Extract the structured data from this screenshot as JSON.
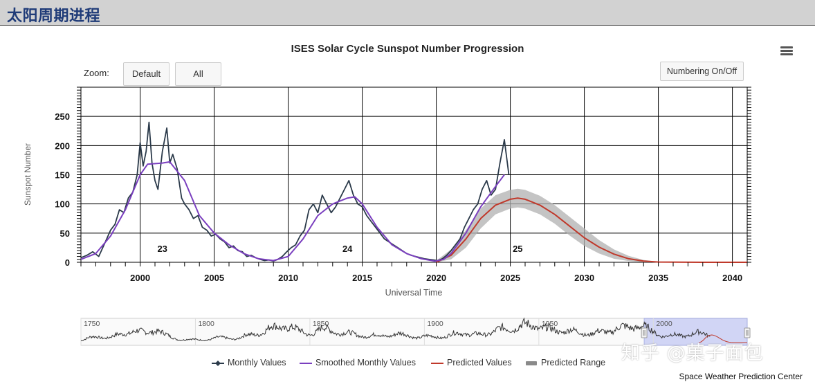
{
  "header": {
    "title": "太阳周期进程"
  },
  "chart_data": {
    "type": "line",
    "title": "ISES Solar Cycle Sunspot Number Progression",
    "xlabel": "Universal Time",
    "ylabel": "Sunspot Number",
    "xlim": [
      1996,
      2041
    ],
    "ylim": [
      0,
      300
    ],
    "x_ticks": [
      2000,
      2005,
      2010,
      2015,
      2020,
      2025,
      2030,
      2035,
      2040
    ],
    "y_ticks": [
      0,
      50,
      100,
      150,
      200,
      250
    ],
    "cycle_labels": [
      {
        "label": "23",
        "x": 2001.5
      },
      {
        "label": "24",
        "x": 2014.0
      },
      {
        "label": "25",
        "x": 2025.5
      }
    ],
    "series": [
      {
        "name": "Monthly Values",
        "color": "#2b3a4a",
        "x": [
          1996.0,
          1996.4,
          1996.8,
          1997.2,
          1997.6,
          1998.0,
          1998.3,
          1998.6,
          1998.9,
          1999.2,
          1999.5,
          1999.8,
          2000.0,
          2000.2,
          2000.4,
          2000.6,
          2000.8,
          2001.0,
          2001.2,
          2001.5,
          2001.8,
          2002.0,
          2002.2,
          2002.5,
          2002.8,
          2003.0,
          2003.3,
          2003.6,
          2003.9,
          2004.2,
          2004.5,
          2004.8,
          2005.1,
          2005.4,
          2005.7,
          2006.0,
          2006.3,
          2006.6,
          2006.9,
          2007.2,
          2007.5,
          2007.8,
          2008.1,
          2008.4,
          2008.7,
          2009.0,
          2009.3,
          2009.6,
          2009.9,
          2010.2,
          2010.5,
          2010.8,
          2011.1,
          2011.4,
          2011.7,
          2012.0,
          2012.3,
          2012.6,
          2012.9,
          2013.2,
          2013.5,
          2013.8,
          2014.1,
          2014.4,
          2014.7,
          2015.0,
          2015.3,
          2015.6,
          2015.9,
          2016.2,
          2016.5,
          2016.8,
          2017.1,
          2017.4,
          2017.7,
          2018.0,
          2018.3,
          2018.6,
          2018.9,
          2019.2,
          2019.5,
          2019.8,
          2020.1,
          2020.4,
          2020.7,
          2021.0,
          2021.3,
          2021.6,
          2021.9,
          2022.2,
          2022.5,
          2022.8,
          2023.1,
          2023.4,
          2023.7,
          2024.0,
          2024.3,
          2024.6,
          2024.9
        ],
        "y": [
          8,
          12,
          18,
          10,
          32,
          55,
          65,
          90,
          85,
          110,
          120,
          150,
          205,
          165,
          190,
          240,
          170,
          140,
          125,
          190,
          230,
          170,
          185,
          160,
          110,
          100,
          90,
          75,
          80,
          60,
          55,
          45,
          48,
          40,
          35,
          25,
          28,
          20,
          18,
          10,
          12,
          8,
          5,
          3,
          4,
          2,
          5,
          10,
          18,
          25,
          30,
          45,
          55,
          90,
          100,
          85,
          115,
          100,
          85,
          95,
          110,
          125,
          140,
          115,
          100,
          95,
          80,
          70,
          60,
          50,
          40,
          35,
          30,
          25,
          20,
          15,
          12,
          10,
          8,
          6,
          5,
          4,
          3,
          6,
          12,
          20,
          30,
          40,
          60,
          75,
          90,
          100,
          125,
          140,
          115,
          125,
          170,
          210,
          150
        ]
      },
      {
        "name": "Smoothed Monthly Values",
        "color": "#7a3fbf",
        "x": [
          1996.0,
          1997.0,
          1998.0,
          1999.0,
          2000.0,
          2000.5,
          2001.5,
          2002.0,
          2003.0,
          2004.0,
          2005.0,
          2006.0,
          2007.0,
          2008.0,
          2009.0,
          2010.0,
          2011.0,
          2012.0,
          2013.0,
          2014.0,
          2014.5,
          2015.0,
          2016.0,
          2017.0,
          2018.0,
          2019.0,
          2019.9,
          2020.5,
          2021.0,
          2022.0,
          2023.0,
          2024.0,
          2024.6
        ],
        "y": [
          5,
          15,
          45,
          90,
          150,
          168,
          170,
          172,
          140,
          80,
          50,
          30,
          15,
          6,
          3,
          10,
          40,
          80,
          100,
          110,
          112,
          100,
          60,
          30,
          15,
          6,
          2,
          5,
          15,
          50,
          95,
          130,
          150
        ]
      },
      {
        "name": "Predicted Values",
        "color": "#c0392b",
        "x": [
          2020.0,
          2021.0,
          2022.0,
          2023.0,
          2024.0,
          2025.0,
          2025.5,
          2026.0,
          2027.0,
          2028.0,
          2029.0,
          2030.0,
          2031.0,
          2032.0,
          2033.0,
          2034.0,
          2035.0,
          2036.0,
          2038.0,
          2041.0
        ],
        "y": [
          0,
          12,
          40,
          75,
          98,
          108,
          110,
          108,
          98,
          82,
          62,
          42,
          26,
          14,
          6,
          2,
          0.5,
          0.2,
          0,
          0
        ]
      },
      {
        "name": "Predicted Range",
        "color": "#b0b0b0",
        "x": [
          2020.0,
          2021.0,
          2022.0,
          2023.0,
          2024.0,
          2025.0,
          2025.5,
          2026.0,
          2027.0,
          2028.0,
          2029.0,
          2030.0,
          2031.0,
          2032.0,
          2033.0,
          2034.0,
          2035.0,
          2036.0,
          2038.0,
          2041.0
        ],
        "low": [
          0,
          5,
          25,
          58,
          82,
          92,
          94,
          92,
          82,
          66,
          46,
          28,
          15,
          6,
          2,
          0,
          0,
          0,
          0,
          0
        ],
        "high": [
          3,
          22,
          55,
          92,
          115,
          124,
          126,
          124,
          114,
          98,
          78,
          58,
          38,
          22,
          11,
          4,
          1,
          0.5,
          0,
          0
        ]
      }
    ],
    "navigator": {
      "x_labels": [
        1750,
        1800,
        1850,
        1900,
        1950,
        2000
      ],
      "range": [
        1750,
        2041
      ],
      "selected": [
        1996,
        2041
      ],
      "cycles": [
        [
          1755.2,
          86
        ],
        [
          1766.5,
          116
        ],
        [
          1775.5,
          158
        ],
        [
          1784.7,
          141
        ],
        [
          1798.3,
          50
        ],
        [
          1810.6,
          81
        ],
        [
          1823.3,
          119
        ],
        [
          1833.9,
          236
        ],
        [
          1843.5,
          198
        ],
        [
          1856.0,
          219
        ],
        [
          1867.2,
          140
        ],
        [
          1878.9,
          113
        ],
        [
          1889.6,
          130
        ],
        [
          1901.7,
          99
        ],
        [
          1913.6,
          140
        ],
        [
          1923.6,
          119
        ],
        [
          1933.8,
          211
        ],
        [
          1944.2,
          270
        ],
        [
          1954.3,
          201
        ],
        [
          1964.9,
          175
        ],
        [
          1976.5,
          165
        ],
        [
          1986.8,
          232
        ],
        [
          1996.4,
          216
        ],
        [
          2008.9,
          116
        ],
        [
          2019.9,
          150
        ]
      ]
    },
    "legend": [
      "Monthly Values",
      "Smoothed Monthly Values",
      "Predicted Values",
      "Predicted Range"
    ]
  },
  "toolbar": {
    "zoom_label": "Zoom:",
    "default_label": "Default",
    "all_label": "All",
    "numbering_label": "Numbering On/Off"
  },
  "footer": {
    "credit": "Space Weather Prediction Center"
  },
  "watermark": "知乎 @菓子面包"
}
